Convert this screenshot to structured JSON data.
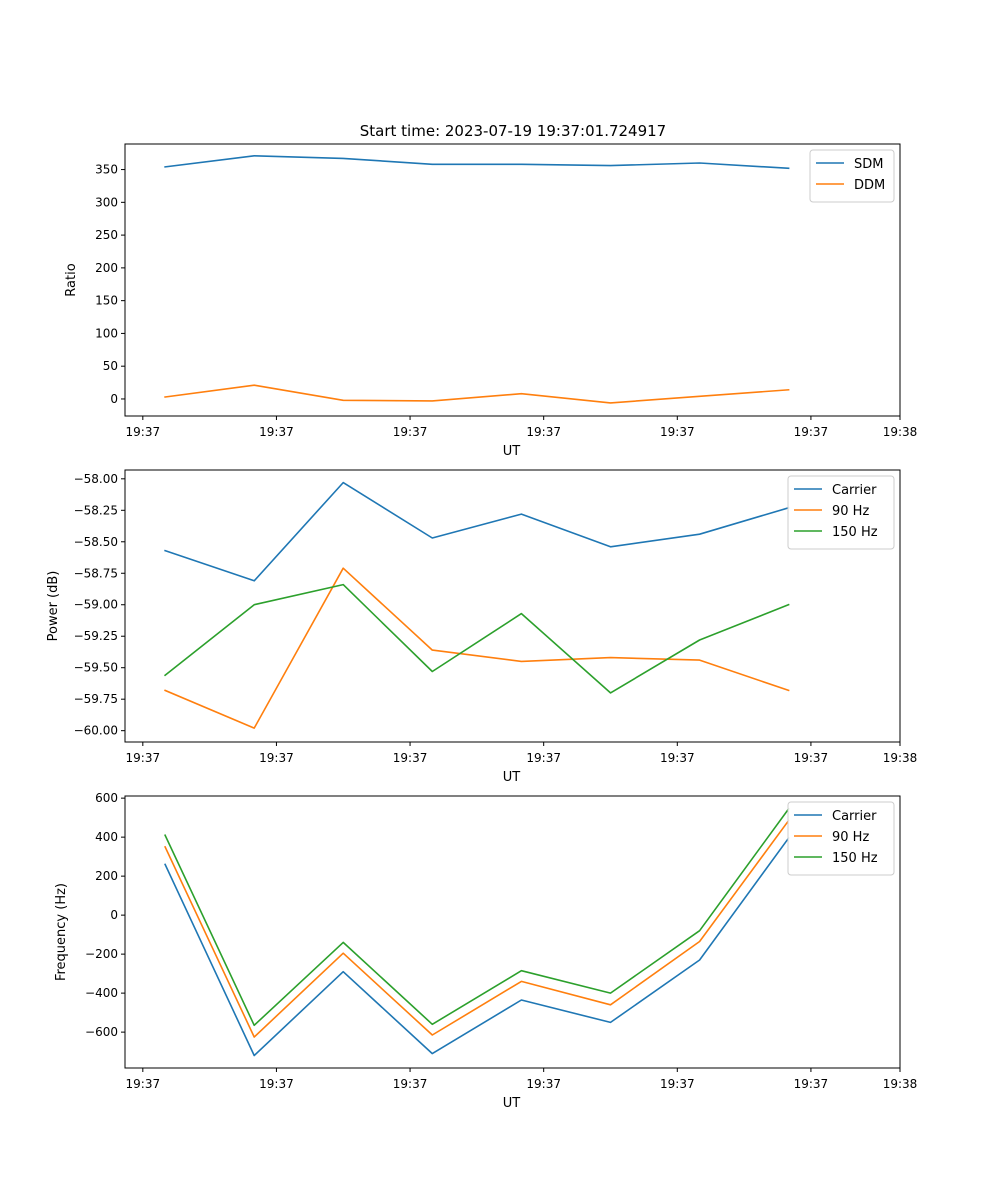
{
  "figure": {
    "title": "Start time: 2023-07-19 19:37:01.724917"
  },
  "colors": {
    "blue": "#1f77b4",
    "orange": "#ff7f0e",
    "green": "#2ca02c"
  },
  "chart_data": [
    {
      "type": "line",
      "title": "Start time: 2023-07-19 19:37:01.724917",
      "xlabel": "UT",
      "ylabel": "Ratio",
      "x": [
        1,
        2,
        3,
        4,
        5,
        6,
        7,
        8
      ],
      "xlim": [
        0.55,
        9.25
      ],
      "xticks": [
        0.75,
        2.25,
        3.75,
        5.25,
        6.75,
        8.25,
        9.25
      ],
      "xtick_labels": [
        "19:37",
        "19:37",
        "19:37",
        "19:37",
        "19:37",
        "19:37",
        "19:38"
      ],
      "ylim": [
        -26,
        389
      ],
      "yticks": [
        0,
        50,
        100,
        150,
        200,
        250,
        300,
        350
      ],
      "ytick_labels": [
        "0",
        "50",
        "100",
        "150",
        "200",
        "250",
        "300",
        "350"
      ],
      "legend_position": "upper-right",
      "series": [
        {
          "name": "SDM",
          "color": "#1f77b4",
          "values": [
            354,
            371,
            367,
            358,
            358,
            356,
            360,
            352
          ]
        },
        {
          "name": "DDM",
          "color": "#ff7f0e",
          "values": [
            3,
            21,
            -2,
            -3,
            8,
            -6,
            4,
            14
          ]
        }
      ]
    },
    {
      "type": "line",
      "title": "",
      "xlabel": "UT",
      "ylabel": "Power (dB)",
      "x": [
        1,
        2,
        3,
        4,
        5,
        6,
        7,
        8
      ],
      "xlim": [
        0.55,
        9.25
      ],
      "xticks": [
        0.75,
        2.25,
        3.75,
        5.25,
        6.75,
        8.25,
        9.25
      ],
      "xtick_labels": [
        "19:37",
        "19:37",
        "19:37",
        "19:37",
        "19:37",
        "19:37",
        "19:38"
      ],
      "ylim": [
        -60.09,
        -57.93
      ],
      "yticks": [
        -60.0,
        -59.75,
        -59.5,
        -59.25,
        -59.0,
        -58.75,
        -58.5,
        -58.25,
        -58.0
      ],
      "ytick_labels": [
        "−60.00",
        "−59.75",
        "−59.50",
        "−59.25",
        "−59.00",
        "−58.75",
        "−58.50",
        "−58.25",
        "−58.00"
      ],
      "legend_position": "upper-right",
      "series": [
        {
          "name": "Carrier",
          "color": "#1f77b4",
          "values": [
            -58.57,
            -58.81,
            -58.03,
            -58.47,
            -58.28,
            -58.54,
            -58.44,
            -58.23
          ]
        },
        {
          "name": "90 Hz",
          "color": "#ff7f0e",
          "values": [
            -59.68,
            -59.98,
            -58.71,
            -59.36,
            -59.45,
            -59.42,
            -59.44,
            -59.68
          ]
        },
        {
          "name": "150 Hz",
          "color": "#2ca02c",
          "values": [
            -59.56,
            -59.0,
            -58.84,
            -59.53,
            -59.07,
            -59.7,
            -59.28,
            -59.0
          ]
        }
      ]
    },
    {
      "type": "line",
      "title": "",
      "xlabel": "UT",
      "ylabel": "Frequency (Hz)",
      "x": [
        1,
        2,
        3,
        4,
        5,
        6,
        7,
        8
      ],
      "xlim": [
        0.55,
        9.25
      ],
      "xticks": [
        0.75,
        2.25,
        3.75,
        5.25,
        6.75,
        8.25,
        9.25
      ],
      "xtick_labels": [
        "19:37",
        "19:37",
        "19:37",
        "19:37",
        "19:37",
        "19:37",
        "19:38"
      ],
      "ylim": [
        -784,
        611
      ],
      "yticks": [
        -600,
        -400,
        -200,
        0,
        200,
        400,
        600
      ],
      "ytick_labels": [
        "−600",
        "−400",
        "−200",
        "0",
        "200",
        "400",
        "600"
      ],
      "legend_position": "upper-right",
      "series": [
        {
          "name": "Carrier",
          "color": "#1f77b4",
          "values": [
            260,
            -720,
            -290,
            -710,
            -435,
            -550,
            -230,
            395
          ]
        },
        {
          "name": "90 Hz",
          "color": "#ff7f0e",
          "values": [
            350,
            -625,
            -195,
            -615,
            -340,
            -460,
            -135,
            485
          ]
        },
        {
          "name": "150 Hz",
          "color": "#2ca02c",
          "values": [
            410,
            -565,
            -140,
            -560,
            -285,
            -400,
            -80,
            545
          ]
        }
      ]
    }
  ]
}
